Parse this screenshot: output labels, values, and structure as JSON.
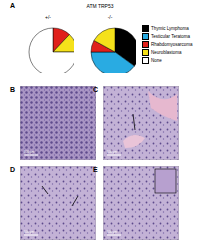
{
  "panel_label": "A",
  "header": "ATM TRP53",
  "chart_data": [
    {
      "type": "pie",
      "title": "+/-",
      "categories": [
        "Thymic Lymphoma",
        "Testicular Teratoma",
        "Rhabdomyosarcoma",
        "Neuroblastoma",
        "None"
      ],
      "values": [
        0,
        0,
        12,
        13,
        75
      ],
      "colors": [
        "#000000",
        "#29abe2",
        "#e0201b",
        "#f5e11a",
        "#ffffff"
      ]
    },
    {
      "type": "pie",
      "title": "-/-",
      "categories": [
        "Thymic Lymphoma",
        "Testicular Teratoma",
        "Rhabdomyosarcoma",
        "Neuroblastoma",
        "None"
      ],
      "values": [
        35,
        40,
        8,
        17,
        0
      ],
      "colors": [
        "#000000",
        "#29abe2",
        "#e0201b",
        "#f5e11a",
        "#ffffff"
      ]
    }
  ],
  "images": [
    {
      "label": "B",
      "scale_bar": "100 µm"
    },
    {
      "label": "C",
      "scale_bar": "100 µm"
    },
    {
      "label": "D",
      "scale_bar": "100 µm"
    },
    {
      "label": "E",
      "scale_bar": "100 µm"
    }
  ]
}
